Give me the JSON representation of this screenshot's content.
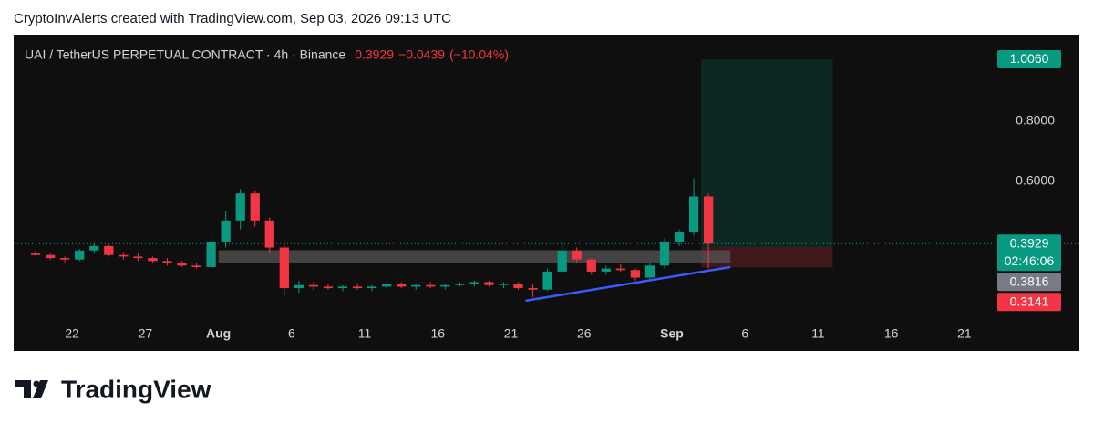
{
  "header": "CryptoInvAlerts created with TradingView.com, Sep 03, 2026 09:13 UTC",
  "footer": "TradingView",
  "chart_data": {
    "type": "candlestick",
    "title": "UAI / TetherUS PERPETUAL CONTRACT · 4h · Binance",
    "last_price": 0.3929,
    "change": {
      "value": -0.0439,
      "label": "−0.0439"
    },
    "change_pct": {
      "value": -10.04,
      "label": "(−10.04%)"
    },
    "up_color": "#089981",
    "down_color": "#f23645",
    "x": [
      "2026-07-19",
      "2026-07-20",
      "2026-07-21",
      "2026-07-22",
      "2026-07-23",
      "2026-07-24",
      "2026-07-25",
      "2026-07-26",
      "2026-07-27",
      "2026-07-28",
      "2026-07-29",
      "2026-07-30",
      "2026-07-31",
      "2026-08-01",
      "2026-08-02",
      "2026-08-03",
      "2026-08-04",
      "2026-08-05",
      "2026-08-06",
      "2026-08-07",
      "2026-08-08",
      "2026-08-09",
      "2026-08-10",
      "2026-08-11",
      "2026-08-12",
      "2026-08-13",
      "2026-08-14",
      "2026-08-15",
      "2026-08-16",
      "2026-08-17",
      "2026-08-18",
      "2026-08-19",
      "2026-08-20",
      "2026-08-21",
      "2026-08-22",
      "2026-08-23",
      "2026-08-24",
      "2026-08-25",
      "2026-08-26",
      "2026-08-27",
      "2026-08-28",
      "2026-08-29",
      "2026-08-30",
      "2026-08-31",
      "2026-09-01",
      "2026-09-02",
      "2026-09-03"
    ],
    "open": [
      0.36,
      0.355,
      0.345,
      0.34,
      0.37,
      0.385,
      0.355,
      0.35,
      0.345,
      0.335,
      0.33,
      0.32,
      0.315,
      0.4,
      0.47,
      0.56,
      0.47,
      0.38,
      0.245,
      0.255,
      0.25,
      0.245,
      0.25,
      0.245,
      0.25,
      0.26,
      0.25,
      0.255,
      0.25,
      0.255,
      0.26,
      0.265,
      0.255,
      0.26,
      0.245,
      0.24,
      0.3,
      0.37,
      0.34,
      0.3,
      0.31,
      0.305,
      0.28,
      0.32,
      0.4,
      0.43,
      0.55
    ],
    "high": [
      0.37,
      0.36,
      0.35,
      0.375,
      0.395,
      0.39,
      0.365,
      0.36,
      0.35,
      0.345,
      0.335,
      0.33,
      0.42,
      0.5,
      0.575,
      0.57,
      0.48,
      0.4,
      0.27,
      0.265,
      0.26,
      0.255,
      0.26,
      0.255,
      0.265,
      0.265,
      0.26,
      0.265,
      0.26,
      0.265,
      0.27,
      0.27,
      0.265,
      0.265,
      0.26,
      0.31,
      0.395,
      0.38,
      0.345,
      0.32,
      0.325,
      0.31,
      0.33,
      0.41,
      0.44,
      0.61,
      0.56
    ],
    "low": [
      0.35,
      0.34,
      0.33,
      0.335,
      0.36,
      0.35,
      0.34,
      0.335,
      0.33,
      0.32,
      0.315,
      0.31,
      0.31,
      0.38,
      0.44,
      0.45,
      0.36,
      0.22,
      0.23,
      0.24,
      0.24,
      0.235,
      0.24,
      0.235,
      0.245,
      0.245,
      0.24,
      0.245,
      0.24,
      0.25,
      0.25,
      0.25,
      0.245,
      0.24,
      0.215,
      0.235,
      0.29,
      0.33,
      0.29,
      0.29,
      0.3,
      0.27,
      0.275,
      0.31,
      0.385,
      0.42,
      0.31
    ],
    "close": [
      0.355,
      0.345,
      0.34,
      0.37,
      0.385,
      0.355,
      0.35,
      0.345,
      0.335,
      0.33,
      0.32,
      0.315,
      0.4,
      0.47,
      0.56,
      0.47,
      0.38,
      0.245,
      0.255,
      0.25,
      0.245,
      0.25,
      0.245,
      0.25,
      0.26,
      0.25,
      0.255,
      0.25,
      0.255,
      0.26,
      0.265,
      0.255,
      0.26,
      0.245,
      0.24,
      0.3,
      0.37,
      0.34,
      0.3,
      0.31,
      0.305,
      0.28,
      0.32,
      0.4,
      0.43,
      0.55,
      0.3929
    ],
    "xlim": [
      "2026-07-18",
      "2026-09-23"
    ],
    "xticks": [
      {
        "value": "2026-07-22",
        "label": "22"
      },
      {
        "value": "2026-07-27",
        "label": "27"
      },
      {
        "value": "2026-08-01",
        "label": "Aug"
      },
      {
        "value": "2026-08-06",
        "label": "6"
      },
      {
        "value": "2026-08-11",
        "label": "11"
      },
      {
        "value": "2026-08-16",
        "label": "16"
      },
      {
        "value": "2026-08-21",
        "label": "21"
      },
      {
        "value": "2026-08-26",
        "label": "26"
      },
      {
        "value": "2026-09-01",
        "label": "Sep"
      },
      {
        "value": "2026-09-06",
        "label": "6"
      },
      {
        "value": "2026-09-11",
        "label": "11"
      },
      {
        "value": "2026-09-16",
        "label": "16"
      },
      {
        "value": "2026-09-21",
        "label": "21"
      }
    ],
    "ylim": [
      0.136,
      1.088
    ],
    "yticks": [
      {
        "value": 0.6,
        "label": "0.6000"
      },
      {
        "value": 0.8,
        "label": "0.8000"
      }
    ],
    "price_tags": [
      {
        "value": 1.006,
        "label": "1.0060",
        "color": "#089981"
      },
      {
        "value": 0.3929,
        "label": "0.3929",
        "countdown": "02:46:06",
        "color": "#089981"
      },
      {
        "value": 0.3816,
        "label": "0.3816",
        "color": "#787b86"
      },
      {
        "value": 0.3141,
        "label": "0.3141",
        "color": "#f23645"
      }
    ],
    "support_zone": {
      "start": "2026-08-01",
      "end": "2026-09-05",
      "low": 0.33,
      "high": 0.371,
      "color": "#555555"
    },
    "position": {
      "start": "2026-09-03",
      "end": "2026-09-12",
      "entry": 0.3816,
      "target": 1.006,
      "stop": 0.3141
    },
    "trendline": {
      "x": [
        "2026-08-22",
        "2026-09-05"
      ],
      "y": [
        0.203,
        0.315
      ],
      "color": "#3d5afe"
    }
  }
}
